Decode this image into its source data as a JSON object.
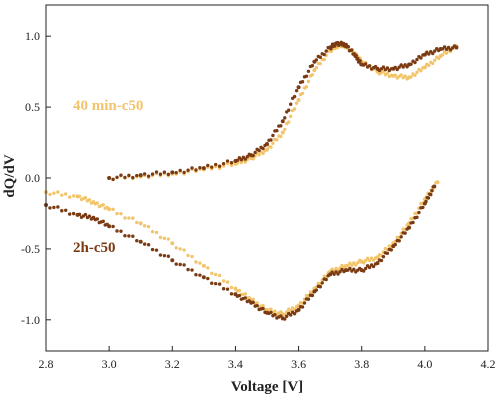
{
  "colors": {
    "series_40min": "#F2C46B",
    "series_2h": "#7A3A12",
    "axis": "#222222"
  },
  "chart_data": {
    "type": "scatter",
    "title": "",
    "xlabel": "Voltage [V]",
    "ylabel": "dQ/dV",
    "xlim": [
      2.8,
      4.2
    ],
    "ylim": [
      -1.22,
      1.22
    ],
    "xticks": [
      "2.8",
      "3.0",
      "3.2",
      "3.4",
      "3.6",
      "3.8",
      "4.0",
      "4.2"
    ],
    "xtick_values": [
      2.8,
      3.0,
      3.2,
      3.4,
      3.6,
      3.8,
      4.0,
      4.2
    ],
    "yticks": [
      "-1.0",
      "-0.5",
      "0.0",
      "0.5",
      "1.0"
    ],
    "ytick_values": [
      -1.0,
      -0.5,
      0.0,
      0.5,
      1.0
    ],
    "grid": false,
    "legend": "none",
    "series": [
      {
        "name": "40 min-c50",
        "color": "#F2C46B",
        "label_position": "left, above curves",
        "charge": [
          [
            3.0,
            0.0
          ],
          [
            3.1,
            0.01
          ],
          [
            3.2,
            0.03
          ],
          [
            3.3,
            0.06
          ],
          [
            3.4,
            0.1
          ],
          [
            3.45,
            0.14
          ],
          [
            3.5,
            0.2
          ],
          [
            3.55,
            0.32
          ],
          [
            3.6,
            0.55
          ],
          [
            3.65,
            0.76
          ],
          [
            3.7,
            0.9
          ],
          [
            3.73,
            0.94
          ],
          [
            3.75,
            0.93
          ],
          [
            3.78,
            0.87
          ],
          [
            3.8,
            0.82
          ],
          [
            3.85,
            0.75
          ],
          [
            3.9,
            0.72
          ],
          [
            3.95,
            0.71
          ],
          [
            4.0,
            0.78
          ],
          [
            4.05,
            0.86
          ],
          [
            4.1,
            0.93
          ]
        ],
        "discharge": [
          [
            2.8,
            -0.1
          ],
          [
            2.9,
            -0.13
          ],
          [
            2.95,
            -0.17
          ],
          [
            3.0,
            -0.22
          ],
          [
            3.1,
            -0.32
          ],
          [
            3.2,
            -0.46
          ],
          [
            3.3,
            -0.62
          ],
          [
            3.4,
            -0.78
          ],
          [
            3.45,
            -0.86
          ],
          [
            3.5,
            -0.93
          ],
          [
            3.55,
            -0.96
          ],
          [
            3.6,
            -0.9
          ],
          [
            3.65,
            -0.78
          ],
          [
            3.7,
            -0.66
          ],
          [
            3.75,
            -0.62
          ],
          [
            3.8,
            -0.59
          ],
          [
            3.85,
            -0.56
          ],
          [
            3.9,
            -0.46
          ],
          [
            3.95,
            -0.32
          ],
          [
            4.0,
            -0.15
          ],
          [
            4.04,
            -0.03
          ]
        ]
      },
      {
        "name": "2h-c50",
        "color": "#7A3A12",
        "label_position": "left, below curves",
        "charge": [
          [
            3.0,
            0.0
          ],
          [
            3.1,
            0.02
          ],
          [
            3.2,
            0.04
          ],
          [
            3.3,
            0.07
          ],
          [
            3.4,
            0.12
          ],
          [
            3.45,
            0.16
          ],
          [
            3.5,
            0.24
          ],
          [
            3.55,
            0.4
          ],
          [
            3.6,
            0.64
          ],
          [
            3.65,
            0.82
          ],
          [
            3.7,
            0.92
          ],
          [
            3.72,
            0.95
          ],
          [
            3.75,
            0.94
          ],
          [
            3.78,
            0.86
          ],
          [
            3.8,
            0.8
          ],
          [
            3.85,
            0.77
          ],
          [
            3.9,
            0.77
          ],
          [
            3.95,
            0.8
          ],
          [
            4.0,
            0.87
          ],
          [
            4.05,
            0.91
          ],
          [
            4.1,
            0.92
          ]
        ],
        "discharge": [
          [
            2.8,
            -0.19
          ],
          [
            2.9,
            -0.26
          ],
          [
            2.95,
            -0.28
          ],
          [
            3.0,
            -0.34
          ],
          [
            3.1,
            -0.45
          ],
          [
            3.2,
            -0.58
          ],
          [
            3.3,
            -0.7
          ],
          [
            3.4,
            -0.82
          ],
          [
            3.45,
            -0.88
          ],
          [
            3.5,
            -0.95
          ],
          [
            3.55,
            -0.99
          ],
          [
            3.6,
            -0.93
          ],
          [
            3.65,
            -0.8
          ],
          [
            3.7,
            -0.68
          ],
          [
            3.75,
            -0.65
          ],
          [
            3.8,
            -0.65
          ],
          [
            3.85,
            -0.6
          ],
          [
            3.9,
            -0.48
          ],
          [
            3.95,
            -0.35
          ],
          [
            4.0,
            -0.18
          ],
          [
            4.03,
            -0.06
          ]
        ]
      }
    ]
  }
}
